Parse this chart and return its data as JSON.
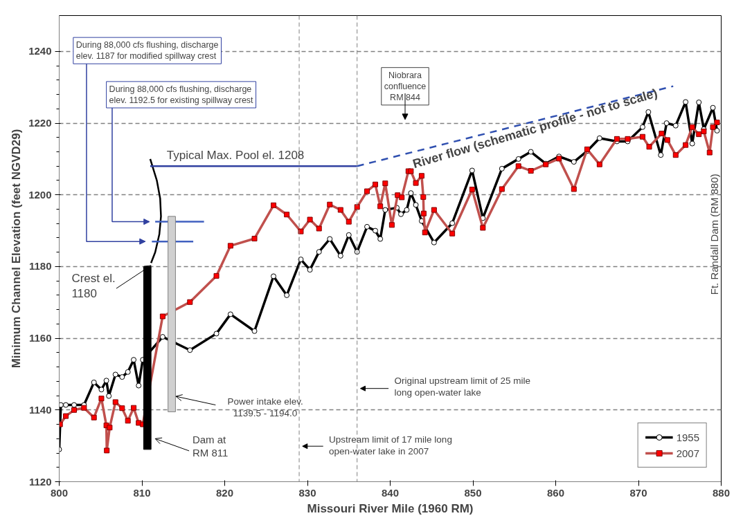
{
  "chart_data": {
    "type": "line",
    "xlabel": "Missouri River Mile (1960 RM)",
    "ylabel": "Minimum Channel Elevation (feet NGVD29)",
    "xlim": [
      800,
      880
    ],
    "xticks": [
      800,
      810,
      820,
      830,
      840,
      850,
      860,
      870,
      880
    ],
    "ylim": [
      1120,
      1250
    ],
    "yticks": [
      1120,
      1140,
      1160,
      1180,
      1200,
      1220,
      1240
    ],
    "grid": "y",
    "legend": "bottom right",
    "series": [
      {
        "name": "1955",
        "color": "#000000",
        "marker": "circle",
        "x": [
          800,
          800.2,
          800.8,
          801.8,
          803,
          804.2,
          805.1,
          805.7,
          806,
          806.8,
          807.6,
          808.3,
          809,
          809.6,
          810.1,
          812.5,
          815.8,
          819,
          820.7,
          823.6,
          825.9,
          827.5,
          829.2,
          830.3,
          831.4,
          832.7,
          834,
          835,
          836,
          837.2,
          838.2,
          838.8,
          839.4,
          840.8,
          841.3,
          842,
          842.5,
          843.1,
          843.8,
          845.3,
          847.5,
          849.9,
          851.2,
          853.5,
          855.5,
          857,
          858.8,
          860.4,
          862.2,
          863.8,
          865.3,
          867.4,
          868.7,
          870.5,
          871.2,
          872.7,
          873.4,
          874.5,
          875.7,
          876.5,
          877.3,
          877.9,
          879,
          879.5
        ],
        "values": [
          1129,
          1141.4,
          1141.4,
          1141.4,
          1141.4,
          1147.7,
          1145.7,
          1148.2,
          1143.9,
          1149.9,
          1149.2,
          1150.6,
          1154,
          1146.8,
          1154,
          1160.4,
          1156.7,
          1161.3,
          1166.7,
          1162,
          1177.3,
          1172,
          1182,
          1179.1,
          1184.1,
          1187.7,
          1183,
          1188.8,
          1184.1,
          1191.1,
          1190,
          1187.7,
          1195.8,
          1196.4,
          1194.6,
          1195.8,
          1200.5,
          1197.2,
          1192.7,
          1186.7,
          1192.1,
          1206.8,
          1193.5,
          1207.3,
          1210,
          1212,
          1208.7,
          1210.7,
          1209.2,
          1212.2,
          1215.8,
          1214.9,
          1214.9,
          1218.9,
          1223.1,
          1211.1,
          1220,
          1219.3,
          1225.9,
          1214.3,
          1225.8,
          1218.3,
          1224.3,
          1217.9
        ]
      },
      {
        "name": "2007",
        "color": "#c0504d",
        "marker": "square",
        "x": [
          800.1,
          800.8,
          801.8,
          803,
          804.2,
          805.1,
          805.7,
          805.75,
          806.1,
          806.8,
          807.6,
          808.3,
          809,
          809.6,
          810.1,
          812.5,
          815.8,
          819,
          820.7,
          823.6,
          825.9,
          827.5,
          829.2,
          830.3,
          831.4,
          832.7,
          834,
          835,
          836,
          837.2,
          838.2,
          838.8,
          839.4,
          840.2,
          840.9,
          841.4,
          842.2,
          842.5,
          843.1,
          843.8,
          844,
          844.05,
          844.2,
          845.3,
          847.5,
          849.9,
          851.2,
          853.5,
          855.5,
          857,
          858.8,
          860.4,
          862.2,
          863.8,
          865.3,
          867.4,
          868.7,
          870.5,
          871.3,
          872.8,
          873.5,
          874.5,
          875.7,
          876.5,
          877.3,
          877.9,
          878.6,
          879,
          879.5
        ],
        "values": [
          1136,
          1138.3,
          1140,
          1140.6,
          1137.9,
          1143.2,
          1135.7,
          1128.7,
          1135.1,
          1142.2,
          1140.5,
          1137,
          1140.6,
          1136.4,
          1136,
          1166.1,
          1170.1,
          1177.4,
          1185.8,
          1187.8,
          1197.1,
          1194.5,
          1189.8,
          1193.1,
          1190.6,
          1197.3,
          1195.8,
          1192.5,
          1196.6,
          1201,
          1202.9,
          1196.8,
          1203.2,
          1191.6,
          1199.9,
          1199.3,
          1206.6,
          1206.6,
          1203.3,
          1205.3,
          1199.4,
          1194.8,
          1189.5,
          1195.8,
          1189.2,
          1201.5,
          1190.8,
          1201.6,
          1208,
          1206.7,
          1208.5,
          1210.1,
          1201.6,
          1212.7,
          1208.5,
          1215.6,
          1215.6,
          1216.2,
          1213.4,
          1217.1,
          1215.3,
          1211.1,
          1213.9,
          1218.9,
          1216.9,
          1217.7,
          1211.8,
          1218.9,
          1220.2
        ]
      },
      {
        "type": "line",
        "color": "#000000",
        "x": [
          811.1,
          811.6,
          812.1,
          812.3,
          812.2,
          811.8,
          811
        ],
        "values": [
          1181,
          1184,
          1189,
          1194,
          1199,
          1204,
          1210
        ]
      },
      {
        "type": "line",
        "color": "#3040a0",
        "x": [
          811,
          836
        ],
        "values": [
          1208,
          1208
        ]
      },
      {
        "type": "line",
        "color": "#4060c0",
        "x": [
          811.6,
          817.5
        ],
        "values": [
          1192.5,
          1192.5
        ]
      },
      {
        "type": "line",
        "color": "#4060c0",
        "x": [
          811.2,
          816.2
        ],
        "values": [
          1187,
          1187
        ]
      },
      {
        "type": "bar",
        "color": "#000000",
        "x": [
          810.65
        ],
        "base": [
          1129
        ],
        "values": [
          51
        ]
      },
      {
        "type": "bar",
        "color": "#d0d0d0",
        "x": [
          813.6
        ],
        "base": [
          1139.5
        ],
        "values": [
          54.5
        ]
      }
    ],
    "ref_lines": [
      {
        "axis": "x",
        "value": 829,
        "label": "Upstream limit of 17 mile long\nopen-water lake in 2007",
        "color": "#808080",
        "line_style": "dashed"
      },
      {
        "axis": "x",
        "value": 836,
        "label": "Original upstream limit of 25 mile\nlong open-water lake",
        "color": "#808080",
        "line_style": "dashed"
      }
    ],
    "annotations": [
      "During 88,000 cfs flushing, discharge\nelev. 1187 for modified spillway crest",
      "During 88,000 cfs flushing, discharge\nelev. 1192.5 for existing spillway crest",
      "Typical Max. Pool el. 1208",
      "Niobrara\nconfluence\nRM 844",
      "River flow (schematic profile - not to scale)",
      {
        "text": "Crest el.\n1180",
        "x": 810.65,
        "y": 1180
      },
      "Dam at\nRM 811",
      {
        "text": "Power intake elev.\n1139.5 - 1194.0",
        "x": 814.1,
        "y": 1143.8
      },
      "Ft. Randall Dam (RM 880)"
    ]
  }
}
